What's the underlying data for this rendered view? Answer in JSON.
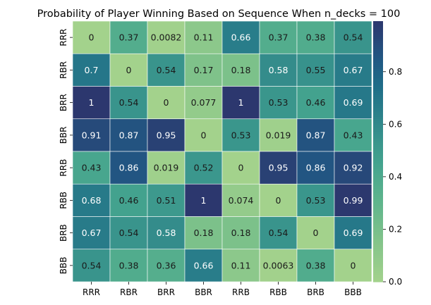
{
  "chart_data": {
    "type": "heatmap",
    "title": "Probability of Player Winning Based on Sequence When n_decks = 100",
    "row_labels": [
      "RRR",
      "RBR",
      "BRR",
      "BBR",
      "RRB",
      "RBB",
      "BRB",
      "BBB"
    ],
    "col_labels": [
      "RRR",
      "RBR",
      "BRR",
      "BBR",
      "RRB",
      "RBB",
      "BRB",
      "BBB"
    ],
    "values": [
      [
        0,
        0.37,
        0.0082,
        0.11,
        0.66,
        0.37,
        0.38,
        0.54
      ],
      [
        0.7,
        0,
        0.54,
        0.17,
        0.18,
        0.58,
        0.55,
        0.67
      ],
      [
        1,
        0.54,
        0,
        0.077,
        1,
        0.53,
        0.46,
        0.69
      ],
      [
        0.91,
        0.87,
        0.95,
        0,
        0.53,
        0.019,
        0.87,
        0.43
      ],
      [
        0.43,
        0.86,
        0.019,
        0.52,
        0,
        0.95,
        0.86,
        0.92
      ],
      [
        0.68,
        0.46,
        0.51,
        1,
        0.074,
        0,
        0.53,
        0.99
      ],
      [
        0.67,
        0.54,
        0.58,
        0.18,
        0.18,
        0.54,
        0,
        0.69
      ],
      [
        0.54,
        0.38,
        0.36,
        0.66,
        0.11,
        0.0063,
        0.38,
        0
      ]
    ],
    "colorbar": {
      "range": [
        0,
        1
      ],
      "ticks": [
        "0.0",
        "0.2",
        "0.4",
        "0.6",
        "0.8"
      ],
      "colormap": "crest"
    }
  }
}
